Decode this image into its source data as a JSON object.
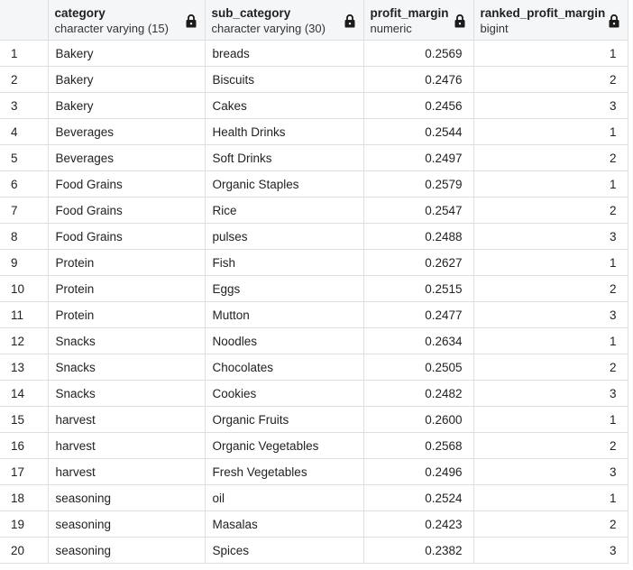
{
  "columns": [
    {
      "name": "category",
      "type": "character varying (15)"
    },
    {
      "name": "sub_category",
      "type": "character varying (30)"
    },
    {
      "name": "profit_margin",
      "type": "numeric"
    },
    {
      "name": "ranked_profit_margin",
      "type": "bigint"
    }
  ],
  "rows": [
    {
      "num": "1",
      "category": "Bakery",
      "sub_category": "breads",
      "profit_margin": "0.2569",
      "ranked_profit_margin": "1"
    },
    {
      "num": "2",
      "category": "Bakery",
      "sub_category": "Biscuits",
      "profit_margin": "0.2476",
      "ranked_profit_margin": "2"
    },
    {
      "num": "3",
      "category": "Bakery",
      "sub_category": "Cakes",
      "profit_margin": "0.2456",
      "ranked_profit_margin": "3"
    },
    {
      "num": "4",
      "category": "Beverages",
      "sub_category": "Health Drinks",
      "profit_margin": "0.2544",
      "ranked_profit_margin": "1"
    },
    {
      "num": "5",
      "category": "Beverages",
      "sub_category": "Soft Drinks",
      "profit_margin": "0.2497",
      "ranked_profit_margin": "2"
    },
    {
      "num": "6",
      "category": "Food Grains",
      "sub_category": "Organic Staples",
      "profit_margin": "0.2579",
      "ranked_profit_margin": "1"
    },
    {
      "num": "7",
      "category": "Food Grains",
      "sub_category": "Rice",
      "profit_margin": "0.2547",
      "ranked_profit_margin": "2"
    },
    {
      "num": "8",
      "category": "Food Grains",
      "sub_category": "pulses",
      "profit_margin": "0.2488",
      "ranked_profit_margin": "3"
    },
    {
      "num": "9",
      "category": "Protein",
      "sub_category": "Fish",
      "profit_margin": "0.2627",
      "ranked_profit_margin": "1"
    },
    {
      "num": "10",
      "category": "Protein",
      "sub_category": "Eggs",
      "profit_margin": "0.2515",
      "ranked_profit_margin": "2"
    },
    {
      "num": "11",
      "category": "Protein",
      "sub_category": "Mutton",
      "profit_margin": "0.2477",
      "ranked_profit_margin": "3"
    },
    {
      "num": "12",
      "category": "Snacks",
      "sub_category": "Noodles",
      "profit_margin": "0.2634",
      "ranked_profit_margin": "1"
    },
    {
      "num": "13",
      "category": "Snacks",
      "sub_category": "Chocolates",
      "profit_margin": "0.2505",
      "ranked_profit_margin": "2"
    },
    {
      "num": "14",
      "category": "Snacks",
      "sub_category": "Cookies",
      "profit_margin": "0.2482",
      "ranked_profit_margin": "3"
    },
    {
      "num": "15",
      "category": "harvest",
      "sub_category": "Organic Fruits",
      "profit_margin": "0.2600",
      "ranked_profit_margin": "1"
    },
    {
      "num": "16",
      "category": "harvest",
      "sub_category": "Organic Vegetables",
      "profit_margin": "0.2568",
      "ranked_profit_margin": "2"
    },
    {
      "num": "17",
      "category": "harvest",
      "sub_category": "Fresh Vegetables",
      "profit_margin": "0.2496",
      "ranked_profit_margin": "3"
    },
    {
      "num": "18",
      "category": "seasoning",
      "sub_category": "oil",
      "profit_margin": "0.2524",
      "ranked_profit_margin": "1"
    },
    {
      "num": "19",
      "category": "seasoning",
      "sub_category": "Masalas",
      "profit_margin": "0.2423",
      "ranked_profit_margin": "2"
    },
    {
      "num": "20",
      "category": "seasoning",
      "sub_category": "Spices",
      "profit_margin": "0.2382",
      "ranked_profit_margin": "3"
    }
  ],
  "icons": {
    "column_lock": "lock-icon"
  }
}
